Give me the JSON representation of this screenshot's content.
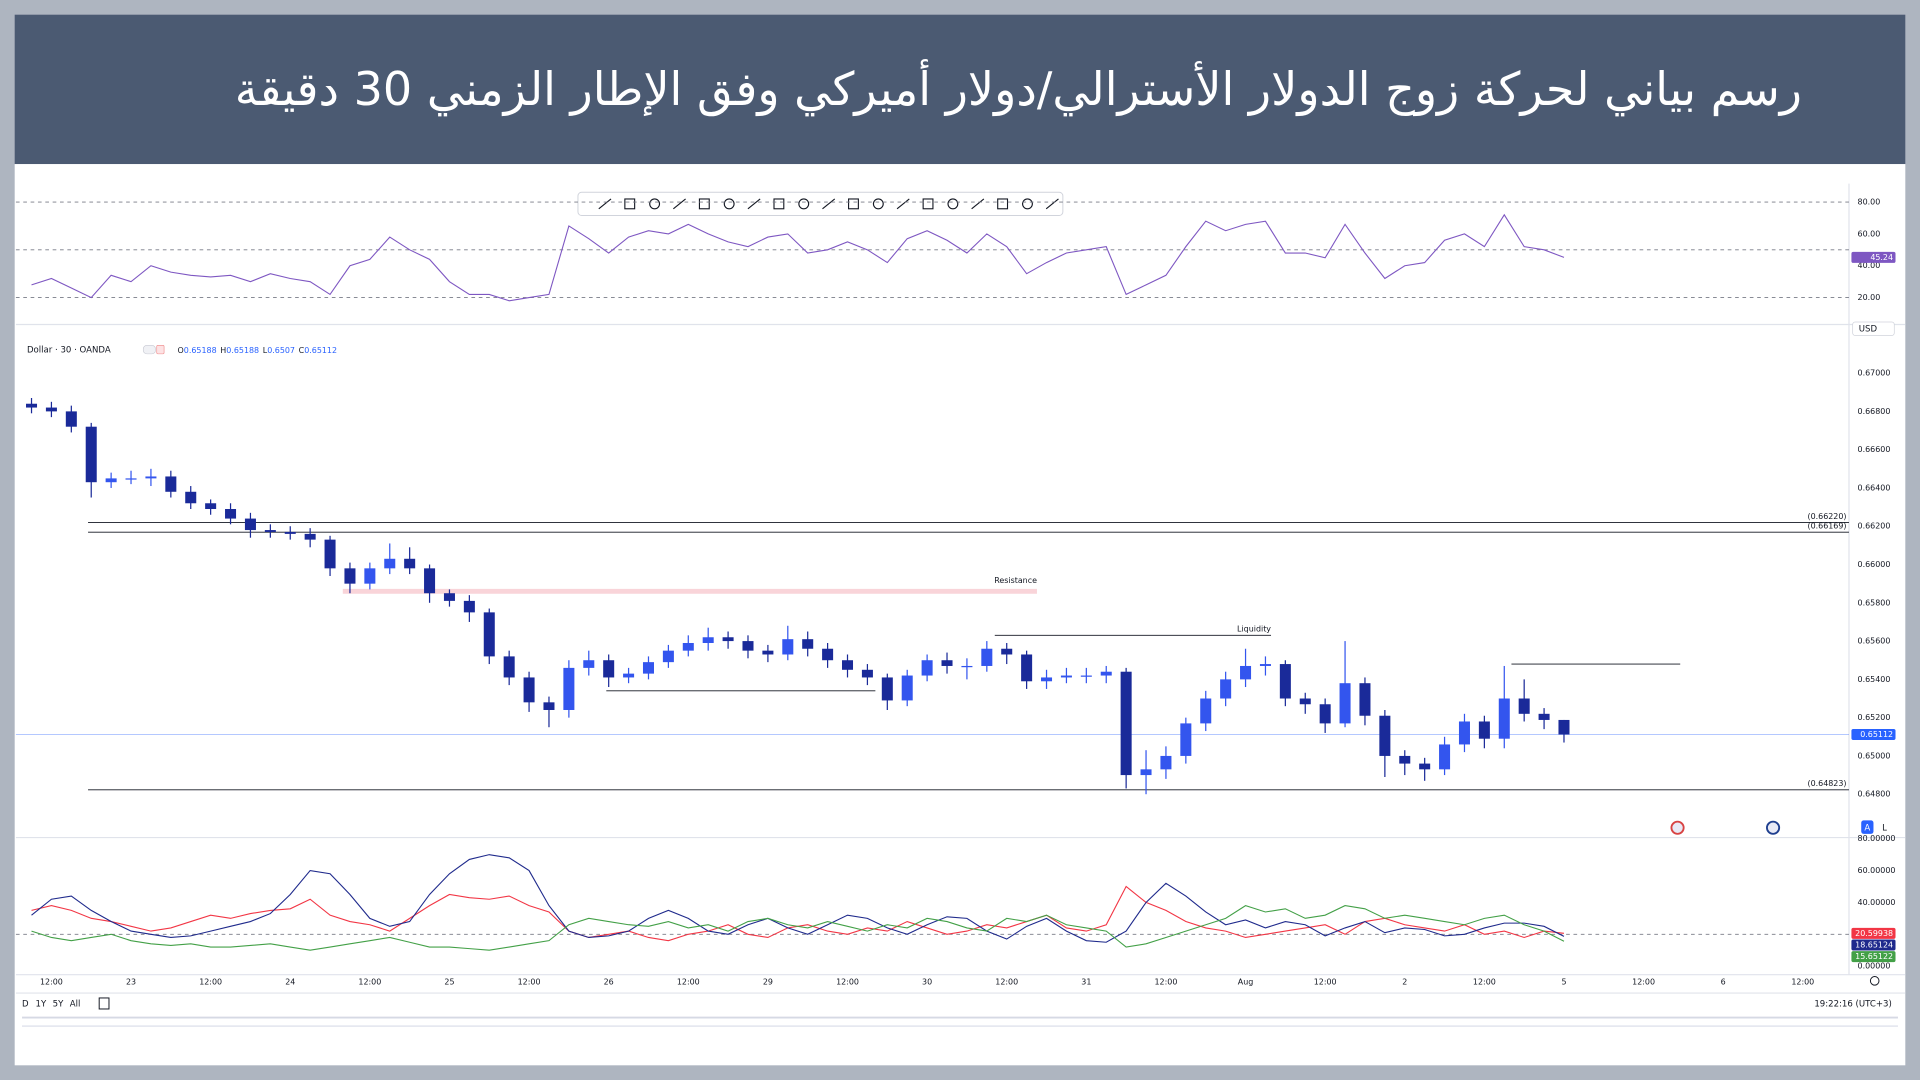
{
  "header": {
    "title": "رسم بياني لحركة زوج الدولار الأسترالي/دولار أميركي وفق الإطار الزمني 30 دقيقة"
  },
  "chart_data": [
    {
      "type": "line",
      "color": "#7e57c2",
      "x": [
        0.75,
        1,
        1.25,
        1.5,
        1.75,
        2,
        2.25,
        2.5,
        2.75,
        3,
        3.25,
        3.5,
        3.75,
        4,
        4.25,
        4.5,
        4.75,
        5,
        5.25,
        5.5,
        5.75,
        6,
        6.25,
        6.5,
        6.75,
        7,
        7.25,
        7.5,
        7.75,
        8,
        8.25,
        8.5,
        8.75,
        9,
        9.25,
        9.5,
        9.75,
        10,
        10.25,
        10.5,
        10.75,
        11,
        11.25,
        11.5,
        11.75,
        12,
        12.25,
        12.5,
        12.75,
        13,
        13.25,
        13.5,
        13.75,
        14,
        14.25,
        14.5,
        14.75,
        15,
        15.25,
        15.5,
        15.75,
        16,
        16.25,
        16.5,
        16.75,
        17,
        17.25,
        17.5,
        17.75,
        18,
        18.25,
        18.5,
        18.75,
        19,
        19.25,
        19.5,
        19.75,
        20
      ],
      "values": [
        28,
        32,
        26,
        20,
        34,
        30,
        40,
        36,
        34,
        33,
        34,
        30,
        35,
        32,
        30,
        22,
        40,
        44,
        58,
        50,
        44,
        30,
        22,
        22,
        18,
        20,
        22,
        65,
        57,
        48,
        58,
        62,
        60,
        66,
        60,
        55,
        52,
        58,
        60,
        48,
        50,
        55,
        50,
        42,
        57,
        62,
        56,
        48,
        60,
        52,
        35,
        42,
        48,
        50,
        52,
        22,
        28,
        34,
        52,
        68,
        62,
        66,
        68,
        48,
        48,
        45,
        66,
        48,
        32,
        40,
        42,
        56,
        60,
        52,
        72,
        52,
        50,
        45.24
      ],
      "xlim": [
        0.554,
        23.58
      ],
      "ylim": [
        10.8,
        87.7
      ],
      "yticks": [
        {
          "value": 80,
          "label": "80.00"
        },
        {
          "value": 60,
          "label": "60.00"
        },
        {
          "value": 40,
          "label": "40.00"
        },
        {
          "value": 20,
          "label": "20.00"
        }
      ],
      "levels": [
        80,
        50,
        20
      ]
    },
    {
      "type": "candlestick",
      "symbol": "Dollar · 30 · OANDA",
      "ohlc_prefixes": [
        "O",
        "H",
        "L",
        "C"
      ],
      "currency": "USD",
      "up_color": "#3355ee",
      "down_color": "#1a2a99",
      "price_line_color": "#2962ff",
      "x": [
        0.75,
        1,
        1.25,
        1.5,
        1.75,
        2,
        2.25,
        2.5,
        2.75,
        3,
        3.25,
        3.5,
        3.75,
        4,
        4.25,
        4.5,
        4.75,
        5,
        5.25,
        5.5,
        5.75,
        6,
        6.25,
        6.5,
        6.75,
        7,
        7.25,
        7.5,
        7.75,
        8,
        8.25,
        8.5,
        8.75,
        9,
        9.25,
        9.5,
        9.75,
        10,
        10.25,
        10.5,
        10.75,
        11,
        11.25,
        11.5,
        11.75,
        12,
        12.25,
        12.5,
        12.75,
        13,
        13.25,
        13.5,
        13.75,
        14,
        14.25,
        14.5,
        14.75,
        15,
        15.25,
        15.5,
        15.75,
        16,
        16.25,
        16.5,
        16.75,
        17,
        17.25,
        17.5,
        17.75,
        18,
        18.25,
        18.5,
        18.75,
        19,
        19.25,
        19.5,
        19.75,
        20
      ],
      "open": [
        0.6684,
        0.6682,
        0.668,
        0.6672,
        0.6643,
        0.6645,
        0.6645,
        0.6646,
        0.6638,
        0.6632,
        0.6629,
        0.6624,
        0.6618,
        0.6617,
        0.6616,
        0.6613,
        0.6598,
        0.659,
        0.6598,
        0.6603,
        0.6598,
        0.6585,
        0.6581,
        0.6575,
        0.6552,
        0.6541,
        0.6528,
        0.6524,
        0.6546,
        0.655,
        0.6541,
        0.6543,
        0.6549,
        0.6555,
        0.6559,
        0.6562,
        0.656,
        0.6555,
        0.6553,
        0.6561,
        0.6556,
        0.655,
        0.6545,
        0.6541,
        0.6529,
        0.6542,
        0.655,
        0.6547,
        0.6547,
        0.6556,
        0.6553,
        0.6539,
        0.6541,
        0.6542,
        0.6542,
        0.6544,
        0.649,
        0.6493,
        0.65,
        0.6517,
        0.653,
        0.654,
        0.6547,
        0.6548,
        0.653,
        0.6527,
        0.6517,
        0.6538,
        0.6521,
        0.65,
        0.6496,
        0.6493,
        0.6506,
        0.6518,
        0.6509,
        0.653,
        0.6522,
        0.65188
      ],
      "high": [
        0.6687,
        0.6685,
        0.6683,
        0.6674,
        0.6648,
        0.6649,
        0.665,
        0.6649,
        0.6641,
        0.6634,
        0.6632,
        0.6627,
        0.6621,
        0.662,
        0.6619,
        0.6615,
        0.6601,
        0.6601,
        0.6611,
        0.6609,
        0.66,
        0.6587,
        0.6584,
        0.6577,
        0.6555,
        0.6544,
        0.6531,
        0.655,
        0.6555,
        0.6553,
        0.6546,
        0.6552,
        0.6558,
        0.6563,
        0.6567,
        0.6565,
        0.6563,
        0.6558,
        0.6568,
        0.6565,
        0.6559,
        0.6553,
        0.6548,
        0.6543,
        0.6545,
        0.6553,
        0.6554,
        0.6551,
        0.656,
        0.6559,
        0.6555,
        0.6545,
        0.6546,
        0.6546,
        0.6547,
        0.6546,
        0.6503,
        0.6505,
        0.652,
        0.6534,
        0.6544,
        0.6556,
        0.6552,
        0.655,
        0.6533,
        0.653,
        0.656,
        0.6541,
        0.6524,
        0.6503,
        0.6499,
        0.651,
        0.6522,
        0.6521,
        0.6547,
        0.654,
        0.6525,
        0.65188
      ],
      "low": [
        0.6679,
        0.6677,
        0.6669,
        0.6635,
        0.664,
        0.6642,
        0.6641,
        0.6635,
        0.6629,
        0.6626,
        0.6621,
        0.6614,
        0.6614,
        0.6613,
        0.6609,
        0.6594,
        0.6585,
        0.6587,
        0.6595,
        0.6595,
        0.658,
        0.6578,
        0.657,
        0.6548,
        0.6537,
        0.6523,
        0.6515,
        0.652,
        0.6542,
        0.6536,
        0.6538,
        0.654,
        0.6546,
        0.6552,
        0.6555,
        0.6556,
        0.6551,
        0.6549,
        0.655,
        0.6552,
        0.6546,
        0.6541,
        0.6537,
        0.6524,
        0.6526,
        0.6539,
        0.6543,
        0.654,
        0.6544,
        0.6548,
        0.6535,
        0.6535,
        0.6538,
        0.6538,
        0.6538,
        0.6483,
        0.648,
        0.6488,
        0.6496,
        0.6513,
        0.6526,
        0.6536,
        0.6542,
        0.6526,
        0.6522,
        0.6512,
        0.6515,
        0.6516,
        0.6489,
        0.649,
        0.6487,
        0.649,
        0.6502,
        0.6504,
        0.6504,
        0.6518,
        0.6514,
        0.6507
      ],
      "close": [
        0.6682,
        0.668,
        0.6672,
        0.6643,
        0.6645,
        0.6645,
        0.6646,
        0.6638,
        0.6632,
        0.6629,
        0.6624,
        0.6618,
        0.6617,
        0.6616,
        0.6613,
        0.6598,
        0.659,
        0.6598,
        0.6603,
        0.6598,
        0.6585,
        0.6581,
        0.6575,
        0.6552,
        0.6541,
        0.6528,
        0.6524,
        0.6546,
        0.655,
        0.6541,
        0.6543,
        0.6549,
        0.6555,
        0.6559,
        0.6562,
        0.656,
        0.6555,
        0.6553,
        0.6561,
        0.6556,
        0.655,
        0.6545,
        0.6541,
        0.6529,
        0.6542,
        0.655,
        0.6547,
        0.6547,
        0.6556,
        0.6553,
        0.6539,
        0.6541,
        0.6542,
        0.6542,
        0.6544,
        0.649,
        0.6493,
        0.65,
        0.6517,
        0.653,
        0.654,
        0.6547,
        0.6548,
        0.653,
        0.6527,
        0.6517,
        0.6538,
        0.6521,
        0.65,
        0.6496,
        0.6493,
        0.6506,
        0.6518,
        0.6509,
        0.653,
        0.6522,
        0.65188,
        0.65112
      ],
      "xlim": [
        0.554,
        23.58
      ],
      "ylim": [
        0.6458,
        0.6719
      ],
      "yticks": [
        {
          "value": 0.67,
          "label": "0.67000"
        },
        {
          "value": 0.668,
          "label": "0.66800"
        },
        {
          "value": 0.666,
          "label": "0.66600"
        },
        {
          "value": 0.664,
          "label": "0.66400"
        },
        {
          "value": 0.662,
          "label": "0.66200"
        },
        {
          "value": 0.66,
          "label": "0.66000"
        },
        {
          "value": 0.658,
          "label": "0.65800"
        },
        {
          "value": 0.656,
          "label": "0.65600"
        },
        {
          "value": 0.654,
          "label": "0.65400"
        },
        {
          "value": 0.652,
          "label": "0.65200"
        },
        {
          "value": 0.65,
          "label": "0.65000"
        },
        {
          "value": 0.648,
          "label": "0.64800"
        }
      ],
      "hlines": [
        {
          "value": 0.6622,
          "label": "(0.66220)",
          "x": 1.46
        },
        {
          "value": 0.66169,
          "label": "(0.66169)",
          "x": 1.46
        },
        {
          "value": 0.64823,
          "label": "(0.64823)",
          "x": 1.46
        }
      ],
      "zones": [
        {
          "value": 0.6586,
          "label": "Resistance",
          "x": [
            4.66,
            13.38
          ]
        }
      ],
      "segments": [
        {
          "value": 0.6563,
          "label": "Liquidity",
          "x": [
            12.85,
            16.32
          ]
        },
        {
          "value": 0.6534,
          "x": [
            7.97,
            11.35
          ]
        },
        {
          "value": 0.6548,
          "x": [
            19.34,
            21.46
          ]
        }
      ]
    },
    {
      "type": "line",
      "x": [
        0.75,
        1,
        1.25,
        1.5,
        1.75,
        2,
        2.25,
        2.5,
        2.75,
        3,
        3.25,
        3.5,
        3.75,
        4,
        4.25,
        4.5,
        4.75,
        5,
        5.25,
        5.5,
        5.75,
        6,
        6.25,
        6.5,
        6.75,
        7,
        7.25,
        7.5,
        7.75,
        8,
        8.25,
        8.5,
        8.75,
        9,
        9.25,
        9.5,
        9.75,
        10,
        10.25,
        10.5,
        10.75,
        11,
        11.25,
        11.5,
        11.75,
        12,
        12.25,
        12.5,
        12.75,
        13,
        13.25,
        13.5,
        13.75,
        14,
        14.25,
        14.5,
        14.75,
        15,
        15.25,
        15.5,
        15.75,
        16,
        16.25,
        16.5,
        16.75,
        17,
        17.25,
        17.5,
        17.75,
        18,
        18.25,
        18.5,
        18.75,
        19,
        19.25,
        19.5,
        19.75,
        20
      ],
      "series": [
        {
          "color": "#f23645",
          "values": [
            35,
            38,
            35,
            30,
            28,
            25,
            22,
            24,
            28,
            32,
            30,
            33,
            35,
            36,
            42,
            32,
            28,
            26,
            22,
            30,
            38,
            45,
            43,
            42,
            44,
            38,
            34,
            22,
            18,
            20,
            22,
            18,
            16,
            20,
            22,
            26,
            20,
            18,
            24,
            26,
            22,
            20,
            24,
            22,
            28,
            24,
            20,
            22,
            26,
            24,
            28,
            32,
            24,
            22,
            26,
            50,
            40,
            35,
            28,
            24,
            22,
            18,
            20,
            22,
            24,
            26,
            20,
            28,
            30,
            26,
            24,
            22,
            26,
            20,
            22,
            18,
            22,
            20.59938
          ]
        },
        {
          "color": "#1f2a8c",
          "values": [
            32,
            42,
            44,
            35,
            28,
            22,
            20,
            18,
            19,
            22,
            25,
            28,
            33,
            45,
            60,
            58,
            45,
            30,
            25,
            28,
            45,
            58,
            67,
            70,
            68,
            60,
            38,
            22,
            18,
            19,
            22,
            30,
            35,
            30,
            22,
            20,
            26,
            30,
            24,
            20,
            26,
            32,
            30,
            24,
            20,
            26,
            31,
            30,
            22,
            17,
            25,
            30,
            22,
            16,
            15,
            22,
            40,
            52,
            44,
            34,
            26,
            29,
            24,
            28,
            26,
            19,
            24,
            28,
            21,
            24,
            23,
            19,
            20,
            24,
            27,
            27,
            25,
            18.65124
          ]
        },
        {
          "color": "#43a047",
          "values": [
            22,
            18,
            16,
            18,
            20,
            16,
            14,
            13,
            14,
            12,
            12,
            13,
            14,
            12,
            10,
            12,
            14,
            16,
            18,
            15,
            12,
            12,
            11,
            10,
            12,
            14,
            16,
            26,
            30,
            28,
            26,
            25,
            28,
            24,
            26,
            22,
            28,
            30,
            26,
            24,
            28,
            25,
            22,
            26,
            24,
            30,
            28,
            24,
            22,
            30,
            28,
            32,
            26,
            24,
            22,
            12,
            14,
            18,
            22,
            26,
            30,
            38,
            34,
            36,
            30,
            32,
            38,
            36,
            30,
            32,
            30,
            28,
            26,
            30,
            32,
            26,
            22,
            15.65122
          ]
        }
      ],
      "xlim": [
        0.554,
        23.58
      ],
      "ylim": [
        -4.6,
        81.5
      ],
      "yticks": [
        {
          "value": 80,
          "label": "80.00000"
        },
        {
          "value": 60,
          "label": "60.00000"
        },
        {
          "value": 40,
          "label": "40.00000"
        },
        {
          "value": 0,
          "label": "0.00000"
        }
      ],
      "levels": [
        20
      ],
      "xticks": [
        {
          "value": 1,
          "label": "12:00"
        },
        {
          "value": 2,
          "label": "23"
        },
        {
          "value": 3,
          "label": "12:00"
        },
        {
          "value": 4,
          "label": "24"
        },
        {
          "value": 5,
          "label": "12:00"
        },
        {
          "value": 6,
          "label": "25"
        },
        {
          "value": 7,
          "label": "12:00"
        },
        {
          "value": 8,
          "label": "26"
        },
        {
          "value": 9,
          "label": "12:00"
        },
        {
          "value": 10,
          "label": "29"
        },
        {
          "value": 11,
          "label": "12:00"
        },
        {
          "value": 12,
          "label": "30"
        },
        {
          "value": 13,
          "label": "12:00"
        },
        {
          "value": 14,
          "label": "31"
        },
        {
          "value": 15,
          "label": "12:00"
        },
        {
          "value": 16,
          "label": "Aug"
        },
        {
          "value": 17,
          "label": "12:00"
        },
        {
          "value": 18,
          "label": "2"
        },
        {
          "value": 19,
          "label": "12:00"
        },
        {
          "value": 20,
          "label": "5"
        },
        {
          "value": 21,
          "label": "12:00"
        },
        {
          "value": 22,
          "label": "6"
        },
        {
          "value": 23,
          "label": "12:00"
        }
      ]
    }
  ],
  "ranges": [
    "D",
    "1Y",
    "5Y",
    "All"
  ],
  "scale_buttons": [
    "A",
    "L"
  ],
  "clock": "19:22:16 (UTC+3)"
}
